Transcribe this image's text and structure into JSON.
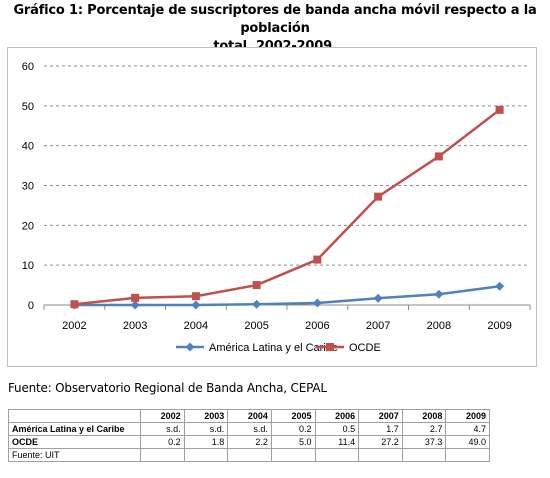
{
  "title_line1": "Gráfico 1: Porcentaje de suscriptores de banda ancha móvil respecto a la población",
  "title_line2": "total, 2002-2009.",
  "source": "Fuente: Observatorio Regional de Banda Ancha, CEPAL",
  "chart_data": {
    "type": "line",
    "categories": [
      "2002",
      "2003",
      "2004",
      "2005",
      "2006",
      "2007",
      "2008",
      "2009"
    ],
    "ylim": [
      0,
      60
    ],
    "yticks": [
      0,
      10,
      20,
      30,
      40,
      50,
      60
    ],
    "grid": true,
    "legend_position": "bottom",
    "series": [
      {
        "name": "América Latina y el Caribe",
        "color": "#4f81bd",
        "marker": "diamond",
        "values": [
          0,
          0,
          0,
          0.2,
          0.5,
          1.7,
          2.7,
          4.7
        ]
      },
      {
        "name": "OCDE",
        "color": "#c0504d",
        "marker": "square",
        "values": [
          0.2,
          1.8,
          2.2,
          5.0,
          11.4,
          27.2,
          37.3,
          49.0
        ]
      }
    ]
  },
  "table": {
    "headers": [
      "",
      "2002",
      "2003",
      "2004",
      "2005",
      "2006",
      "2007",
      "2008",
      "2009"
    ],
    "rows": [
      {
        "label": "América Latina y el Caribe",
        "cells": [
          "s.d.",
          "s.d.",
          "s.d.",
          "0.2",
          "0.5",
          "1.7",
          "2.7",
          "4.7"
        ]
      },
      {
        "label": "OCDE",
        "cells": [
          "0.2",
          "1.8",
          "2.2",
          "5.0",
          "11.4",
          "27.2",
          "37.3",
          "49.0"
        ]
      }
    ],
    "note": "Fuente: UIT"
  }
}
